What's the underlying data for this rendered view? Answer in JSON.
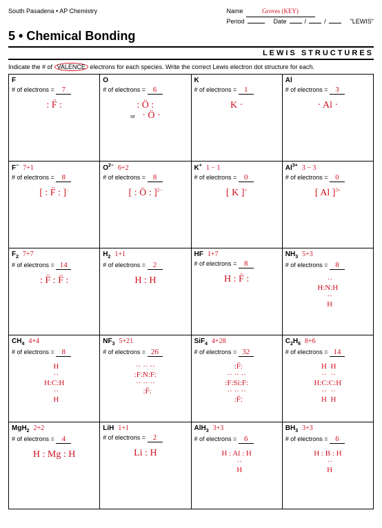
{
  "header": {
    "school": "South Pasadena • AP Chemistry",
    "name_label": "Name",
    "name_value": "Groves (KEY)",
    "period_label": "Period",
    "date_label": "Date",
    "date_sep": "/",
    "worksheet": "\"LEWIS\""
  },
  "title": "5 • Chemical Bonding",
  "subtitle": "LEWIS STRUCTURES",
  "instructions_pre": "Indicate the # of ",
  "instructions_circled": "VALENCE",
  "instructions_post": " electrons for each species.  Write the correct Lewis electron dot structure for each.",
  "elec_label": "# of electrons = ",
  "cells": [
    [
      {
        "sym": "F",
        "calc": "",
        "elec": "7",
        "lewis": ": F̈ :",
        "cls": ""
      },
      {
        "sym": "O",
        "calc": "",
        "elec": "6",
        "lewis": ": Ö :<br><span style='font-size:8px;color:#000'>or</span>&nbsp;&nbsp; · Ö ·",
        "cls": ""
      },
      {
        "sym": "K",
        "calc": "",
        "elec": "1",
        "lewis": "K ·",
        "cls": ""
      },
      {
        "sym": "Al",
        "calc": "",
        "elec": "3",
        "lewis": "· Al ·",
        "cls": ""
      }
    ],
    [
      {
        "sym": "F<span class='sup'>−</span>",
        "calc": "7+1",
        "elec": "8",
        "lewis": "[ : F̈ : ]<span class='sup'>−</span>",
        "cls": ""
      },
      {
        "sym": "O<span class='sup'>2−</span>",
        "calc": "6+2",
        "elec": "8",
        "lewis": "[ : Ö : ]<span class='sup'>2−</span>",
        "cls": ""
      },
      {
        "sym": "K<span class='sup'>+</span>",
        "calc": "1 − 1",
        "elec": "0",
        "lewis": "[ K ]<span class='sup'>+</span>",
        "cls": ""
      },
      {
        "sym": "Al<span class='sup'>3+</span>",
        "calc": "3 − 3",
        "elec": "0",
        "lewis": "[ Al ]<span class='sup'>3+</span>",
        "cls": ""
      }
    ],
    [
      {
        "sym": "F<span class='sub'>2</span>",
        "calc": "7+7",
        "elec": "14",
        "lewis": ": F̈ : F̈ :",
        "cls": ""
      },
      {
        "sym": "H<span class='sub'>2</span>",
        "calc": "1+1",
        "elec": "2",
        "lewis": "H : H",
        "cls": ""
      },
      {
        "sym": "HF",
        "calc": "1+7",
        "elec": "8",
        "lewis": "H : F̈ :",
        "cls": ""
      },
      {
        "sym": "NH<span class='sub'>3</span>",
        "calc": "5+3",
        "elec": "8",
        "lewis": "&nbsp;&nbsp;··<br>H:N:H<br>&nbsp;&nbsp;··<br>&nbsp;&nbsp;H",
        "cls": "small"
      }
    ],
    [
      {
        "sym": "CH<span class='sub'>4</span>",
        "calc": "4+4",
        "elec": "8",
        "lewis": "&nbsp;&nbsp;H<br>&nbsp;&nbsp;··<br>H:C:H<br>&nbsp;&nbsp;··<br>&nbsp;&nbsp;H",
        "cls": "small"
      },
      {
        "sym": "NF<span class='sub'>3</span>",
        "calc": "5+21",
        "elec": "26",
        "lewis": "··&nbsp;··&nbsp;··<br>:F:N:F:<br>··&nbsp;··&nbsp;··<br>&nbsp;&nbsp;:F̈:",
        "cls": "small"
      },
      {
        "sym": "SiF<span class='sub'>4</span>",
        "calc": "4+28",
        "elec": "32",
        "lewis": "&nbsp;&nbsp;:F̈:<br>··&nbsp;··&nbsp;··<br>:F:Si:F:<br>··&nbsp;··&nbsp;··<br>&nbsp;&nbsp;:F̈:",
        "cls": "small"
      },
      {
        "sym": "C<span class='sub'>2</span>H<span class='sub'>6</span>",
        "calc": "8+6",
        "elec": "14",
        "lewis": "&nbsp;H&nbsp;&nbsp;H<br>&nbsp;··&nbsp;&nbsp;··<br>H:C:C:H<br>&nbsp;··&nbsp;&nbsp;··<br>&nbsp;H&nbsp;&nbsp;H",
        "cls": "small"
      }
    ],
    [
      {
        "sym": "MgH<span class='sub'>2</span>",
        "calc": "2+2",
        "elec": "4",
        "lewis": "H : Mg : H",
        "cls": ""
      },
      {
        "sym": "LiH",
        "calc": "1+1",
        "elec": "2",
        "lewis": "Li : H",
        "cls": ""
      },
      {
        "sym": "AlH<span class='sub'>3</span>",
        "calc": "3+3",
        "elec": "6",
        "lewis": "H : Al : H<br>&nbsp;&nbsp;&nbsp;··<br>&nbsp;&nbsp;&nbsp;H",
        "cls": "small"
      },
      {
        "sym": "BH<span class='sub'>3</span>",
        "calc": "3+3",
        "elec": "6",
        "lewis": "H : B : H<br>&nbsp;&nbsp;··<br>&nbsp;&nbsp;H",
        "cls": "small"
      }
    ]
  ]
}
